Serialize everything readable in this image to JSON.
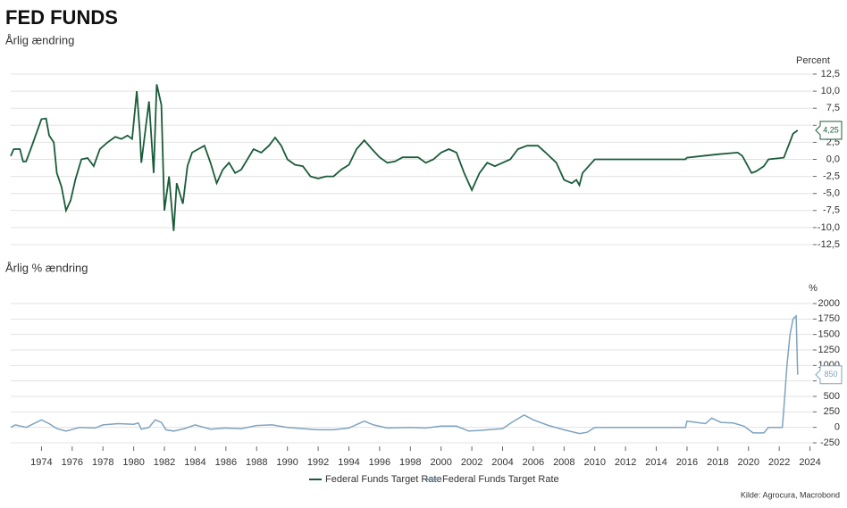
{
  "source": "Kilde: Agrocura, Macrobond",
  "chart_data": [
    {
      "type": "line",
      "title": "FED FUNDS",
      "subtitle": "Årlig ændring",
      "ylabel": "Percent",
      "xlim": [
        1972,
        2024.2
      ],
      "ylim": [
        -12.5,
        12.5
      ],
      "yticks": [
        {
          "value": 12.5,
          "label": "12,5"
        },
        {
          "value": 10,
          "label": "10,0"
        },
        {
          "value": 7.5,
          "label": "7,5"
        },
        {
          "value": 5,
          "label": "5,0"
        },
        {
          "value": 2.5,
          "label": "2,5"
        },
        {
          "value": 0,
          "label": "0,0"
        },
        {
          "value": -2.5,
          "label": "-2,5"
        },
        {
          "value": -5,
          "label": "-5,0"
        },
        {
          "value": -7.5,
          "label": "-7,5"
        },
        {
          "value": -10,
          "label": "-10,0"
        },
        {
          "value": -12.5,
          "label": "-12,5"
        }
      ],
      "grid": true,
      "x": [
        1972.0,
        1972.2,
        1972.6,
        1972.8,
        1973.0,
        1973.3,
        1973.7,
        1974.0,
        1974.3,
        1974.5,
        1974.8,
        1975.0,
        1975.3,
        1975.6,
        1975.9,
        1976.2,
        1976.6,
        1977.0,
        1977.4,
        1977.8,
        1978.3,
        1978.8,
        1979.2,
        1979.6,
        1979.9,
        1980.2,
        1980.4,
        1980.5,
        1980.8,
        1981.0,
        1981.3,
        1981.5,
        1981.8,
        1982.0,
        1982.3,
        1982.6,
        1982.8,
        1983.2,
        1983.5,
        1983.8,
        1984.2,
        1984.6,
        1985.0,
        1985.4,
        1985.8,
        1986.2,
        1986.6,
        1987.0,
        1987.4,
        1987.8,
        1988.3,
        1988.8,
        1989.2,
        1989.6,
        1990.0,
        1990.5,
        1991.0,
        1991.5,
        1992.0,
        1992.5,
        1993.0,
        1993.5,
        1994.0,
        1994.5,
        1995.0,
        1995.5,
        1996.0,
        1996.5,
        1997.0,
        1997.5,
        1998.5,
        1999.0,
        1999.5,
        2000.0,
        2000.5,
        2001.0,
        2001.5,
        2002.0,
        2002.5,
        2003.0,
        2003.5,
        2004.0,
        2004.5,
        2005.0,
        2005.6,
        2006.3,
        2006.8,
        2007.5,
        2008.0,
        2008.5,
        2008.8,
        2009.0,
        2009.2,
        2010.0,
        2015.9,
        2016.0,
        2017.0,
        2018.0,
        2019.3,
        2019.6,
        2020.2,
        2020.5,
        2021.0,
        2021.3,
        2022.3,
        2022.6,
        2022.9,
        2023.2
      ],
      "series": [
        {
          "name": "Federal Funds Target Rate",
          "color": "#1a5c3a",
          "end_label": "4,25",
          "values": [
            0.5,
            1.5,
            1.5,
            -0.3,
            -0.3,
            1.5,
            4.0,
            5.9,
            6.0,
            3.5,
            2.5,
            -2.0,
            -4.0,
            -7.5,
            -6.0,
            -3.0,
            0.0,
            0.2,
            -1.0,
            1.5,
            2.5,
            3.3,
            3.0,
            3.5,
            3.0,
            10.0,
            4.0,
            -0.5,
            5.0,
            8.5,
            -2.0,
            11.0,
            8.0,
            -7.5,
            -2.5,
            -10.5,
            -3.5,
            -6.5,
            -1.0,
            1.0,
            1.5,
            2.0,
            -0.5,
            -3.5,
            -1.5,
            -0.5,
            -2.0,
            -1.5,
            0.0,
            1.5,
            1.0,
            2.0,
            3.2,
            2.0,
            0.0,
            -0.8,
            -1.0,
            -2.5,
            -2.8,
            -2.5,
            -2.5,
            -1.5,
            -0.8,
            1.5,
            2.8,
            1.5,
            0.3,
            -0.5,
            -0.3,
            0.3,
            0.3,
            -0.5,
            0.0,
            1.0,
            1.5,
            1.0,
            -2.0,
            -4.5,
            -2.0,
            -0.5,
            -1.0,
            -0.5,
            0.0,
            1.5,
            2.0,
            2.0,
            1.0,
            -0.5,
            -3.0,
            -3.5,
            -3.0,
            -3.8,
            -2.0,
            0.0,
            0.0,
            0.25,
            0.5,
            0.75,
            1.0,
            0.5,
            -2.0,
            -1.75,
            -1.0,
            0.0,
            0.25,
            2.0,
            3.75,
            4.25
          ]
        }
      ]
    },
    {
      "type": "line",
      "subtitle": "Årlig % ændring",
      "ylabel": "%",
      "xlim": [
        1972,
        2024.2
      ],
      "ylim": [
        -250,
        2000
      ],
      "yticks": [
        2000,
        1750,
        1500,
        1250,
        1000,
        750,
        500,
        250,
        0,
        -250
      ],
      "xticks": [
        1974,
        1976,
        1978,
        1980,
        1982,
        1984,
        1986,
        1988,
        1990,
        1992,
        1994,
        1996,
        1998,
        2000,
        2002,
        2004,
        2006,
        2008,
        2010,
        2012,
        2014,
        2016,
        2018,
        2020,
        2022,
        2024
      ],
      "grid": true,
      "x": [
        1972.0,
        1972.3,
        1973.0,
        1974.0,
        1974.5,
        1975.0,
        1975.6,
        1976.5,
        1977.5,
        1978.0,
        1979.0,
        1980.0,
        1980.3,
        1980.5,
        1981.0,
        1981.4,
        1981.8,
        1982.1,
        1982.6,
        1983.3,
        1984.0,
        1985.0,
        1986.0,
        1987.0,
        1988.0,
        1989.0,
        1990.0,
        1991.0,
        1992.0,
        1993.0,
        1994.0,
        1995.0,
        1995.6,
        1996.5,
        1998.0,
        1999.0,
        2000.0,
        2001.0,
        2001.8,
        2002.5,
        2003.5,
        2004.0,
        2004.6,
        2005.4,
        2006.0,
        2007.0,
        2008.0,
        2009.0,
        2009.5,
        2010.0,
        2015.9,
        2016.0,
        2017.2,
        2017.6,
        2018.2,
        2019.0,
        2019.7,
        2020.3,
        2021.0,
        2021.3,
        2022.2,
        2022.3,
        2022.5,
        2022.7,
        2022.9,
        2023.1,
        2023.2
      ],
      "series": [
        {
          "name": "Federal Funds Target Rate",
          "color": "#7fa3bf",
          "end_label": "850",
          "values": [
            0,
            40,
            0,
            120,
            60,
            -20,
            -60,
            0,
            -10,
            40,
            60,
            50,
            70,
            -30,
            0,
            120,
            80,
            -40,
            -60,
            -20,
            40,
            -30,
            -10,
            -20,
            30,
            40,
            0,
            -20,
            -40,
            -40,
            -10,
            100,
            40,
            -10,
            0,
            -10,
            20,
            20,
            -60,
            -50,
            -30,
            -20,
            80,
            200,
            120,
            30,
            -40,
            -100,
            -80,
            0,
            0,
            100,
            60,
            150,
            80,
            70,
            20,
            -90,
            -90,
            0,
            0,
            300,
            1000,
            1500,
            1750,
            1800,
            850
          ]
        }
      ]
    }
  ]
}
